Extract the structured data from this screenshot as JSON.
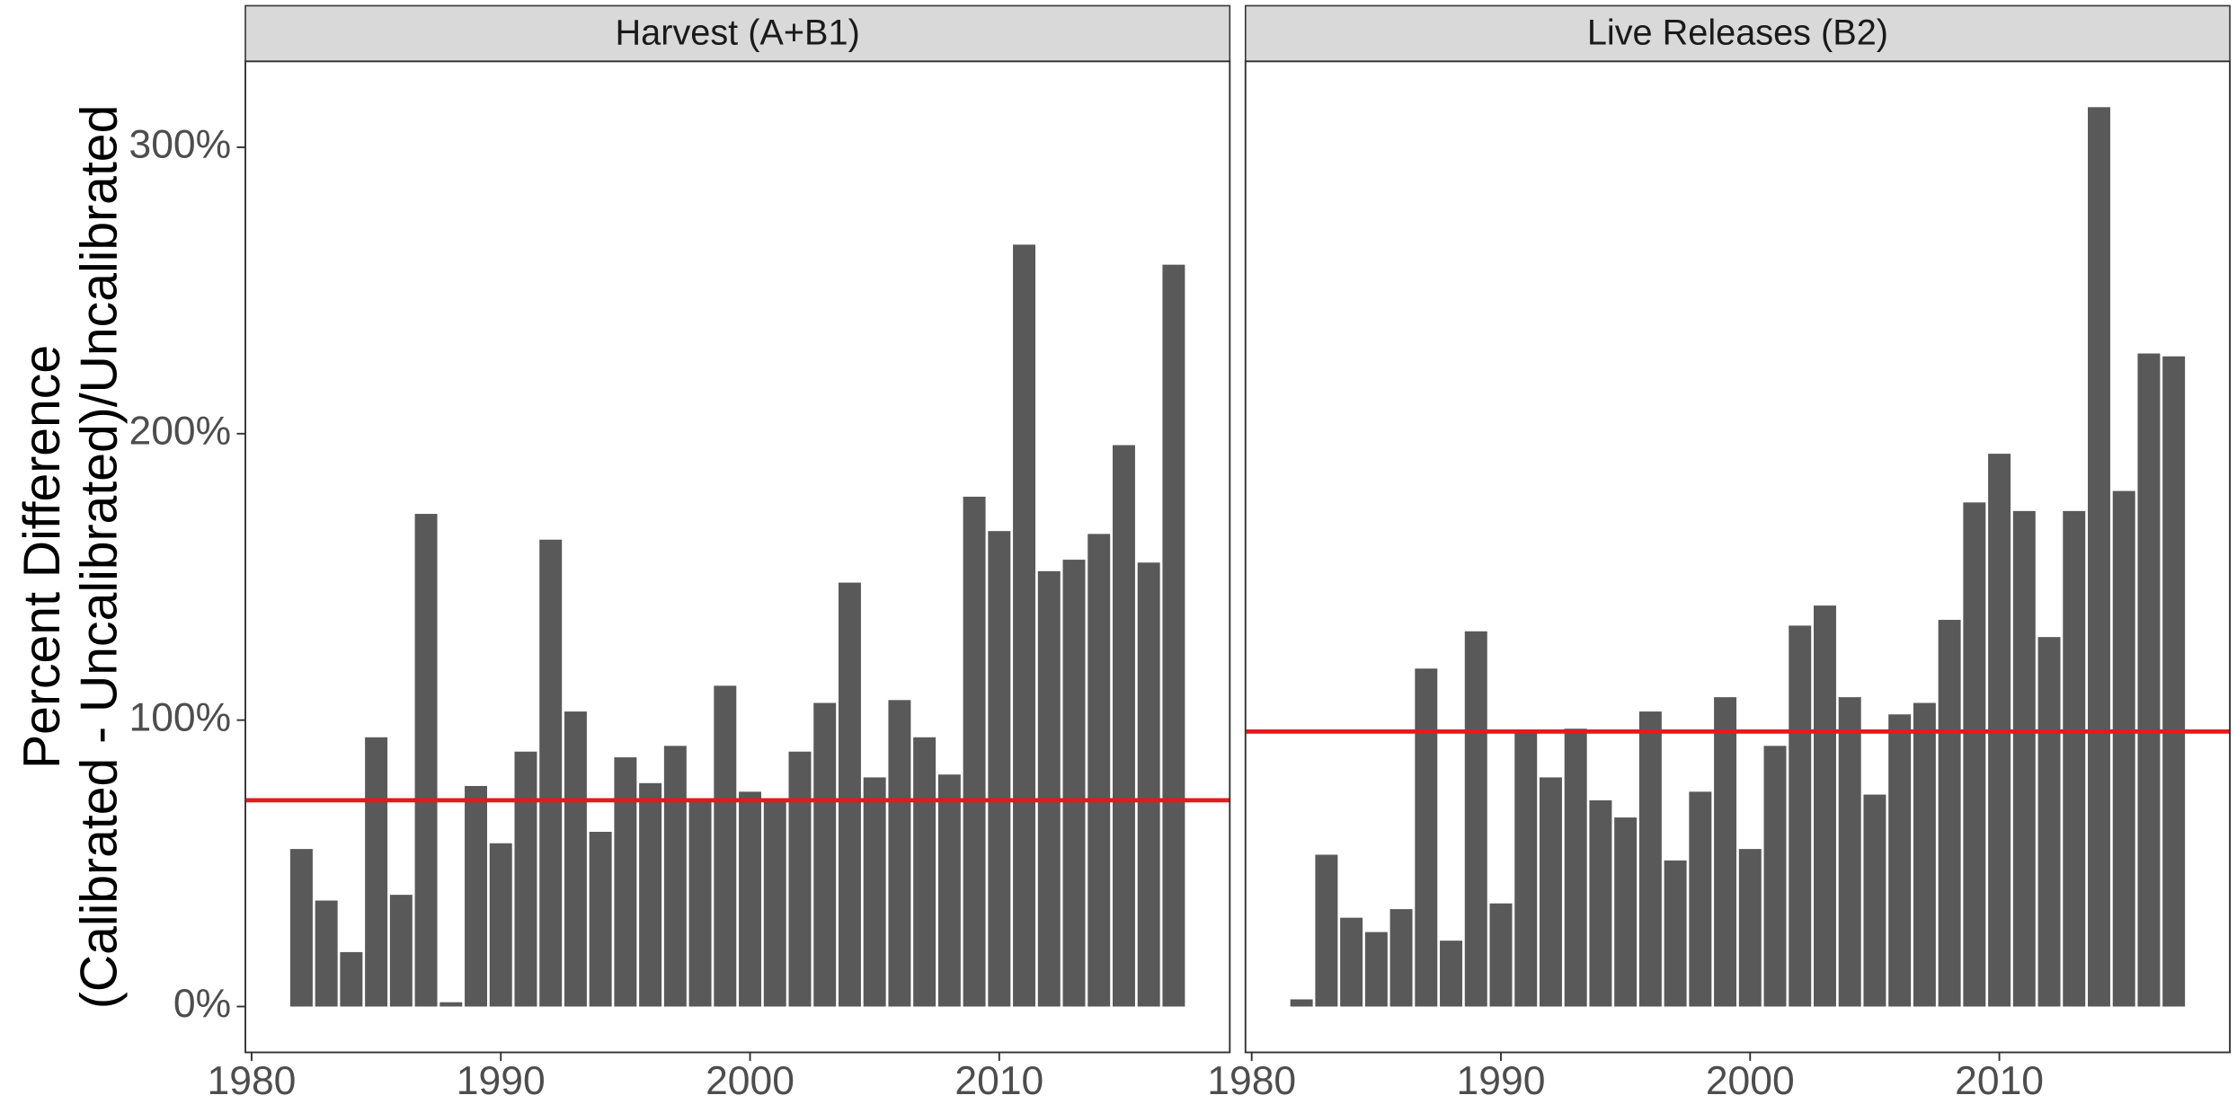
{
  "chart_data": [
    {
      "type": "bar",
      "title": "Harvest (A+B1)",
      "ylabel": [
        "Percent Difference",
        "(Calibrated - Uncalibrated)/Uncalibrated"
      ],
      "x": [
        1982,
        1983,
        1984,
        1985,
        1986,
        1987,
        1988,
        1989,
        1990,
        1991,
        1992,
        1993,
        1994,
        1995,
        1996,
        1997,
        1998,
        1999,
        2000,
        2001,
        2002,
        2003,
        2004,
        2005,
        2006,
        2007,
        2008,
        2009,
        2010,
        2011,
        2012,
        2013,
        2014,
        2015,
        2016,
        2017
      ],
      "values": [
        55,
        37,
        19,
        94,
        39,
        172,
        1.5,
        77,
        57,
        89,
        163,
        103,
        61,
        87,
        78,
        91,
        72,
        112,
        75,
        72,
        89,
        106,
        148,
        80,
        107,
        94,
        81,
        178,
        166,
        266,
        152,
        156,
        165,
        196,
        155,
        259
      ],
      "color": "#595959",
      "hline": 72,
      "hline_color": "#e41a1c",
      "xlim": [
        1979.75,
        2019.25
      ],
      "xticks": [
        1980,
        1990,
        2000,
        2010
      ],
      "ylim": [
        -16,
        330
      ],
      "yticks": [
        {
          "value": 0,
          "label": "0%"
        },
        {
          "value": 100,
          "label": "100%"
        },
        {
          "value": 200,
          "label": "200%"
        },
        {
          "value": 300,
          "label": "300%"
        }
      ]
    },
    {
      "type": "bar",
      "title": "Live Releases (B2)",
      "x": [
        1982,
        1983,
        1984,
        1985,
        1986,
        1987,
        1988,
        1989,
        1990,
        1991,
        1992,
        1993,
        1994,
        1995,
        1996,
        1997,
        1998,
        1999,
        2000,
        2001,
        2002,
        2003,
        2004,
        2005,
        2006,
        2007,
        2008,
        2009,
        2010,
        2011,
        2012,
        2013,
        2014,
        2015,
        2016,
        2017
      ],
      "values": [
        2.5,
        53,
        31,
        26,
        34,
        118,
        23,
        131,
        36,
        96,
        80,
        97,
        72,
        66,
        103,
        51,
        75,
        108,
        55,
        91,
        133,
        140,
        108,
        74,
        102,
        106,
        135,
        176,
        193,
        173,
        129,
        173,
        314,
        180,
        228,
        227
      ],
      "color": "#595959",
      "hline": 96,
      "hline_color": "#e41a1c",
      "xlim": [
        1979.75,
        2019.25
      ],
      "xticks": [
        1980,
        1990,
        2000,
        2010
      ],
      "ylim": [
        -16,
        330
      ]
    }
  ]
}
